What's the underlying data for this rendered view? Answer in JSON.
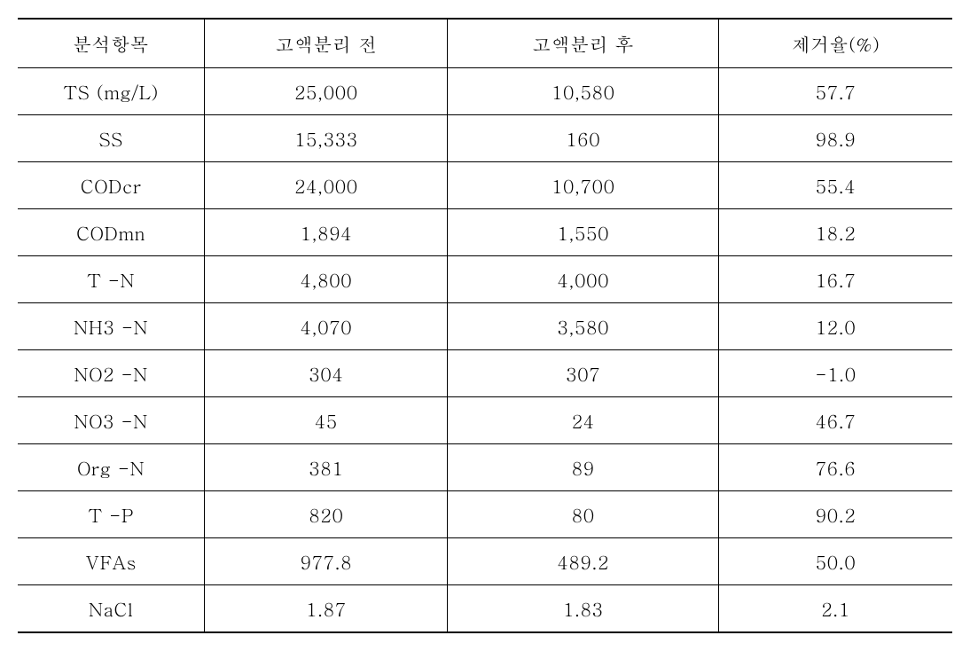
{
  "table": {
    "type": "table",
    "background_color": "#ffffff",
    "border_color": "#000000",
    "text_color": "#000000",
    "font_size": 21,
    "header_border_top_width": 2,
    "header_border_bottom_width": 1,
    "row_border_width": 1,
    "last_row_border_width": 2,
    "column_widths": [
      "20%",
      "26%",
      "29%",
      "25%"
    ],
    "columns": [
      "분석항목",
      "고액분리 전",
      "고액분리 후",
      "제거율(%)"
    ],
    "rows": [
      {
        "c0": "TS (mg/L)",
        "c1": "25,000",
        "c2": "10,580",
        "c3": "57.7"
      },
      {
        "c0": "SS",
        "c1": "15,333",
        "c2": "160",
        "c3": "98.9"
      },
      {
        "c0": "CODcr",
        "c1": "24,000",
        "c2": "10,700",
        "c3": "55.4"
      },
      {
        "c0": "CODmn",
        "c1": "1,894",
        "c2": "1,550",
        "c3": "18.2"
      },
      {
        "c0": "T -N",
        "c1": "4,800",
        "c2": "4,000",
        "c3": "16.7"
      },
      {
        "c0": "NH3 -N",
        "c1": "4,070",
        "c2": "3,580",
        "c3": "12.0"
      },
      {
        "c0": "NO2 -N",
        "c1": "304",
        "c2": "307",
        "c3": "-1.0"
      },
      {
        "c0": "NO3 -N",
        "c1": "45",
        "c2": "24",
        "c3": "46.7"
      },
      {
        "c0": "Org -N",
        "c1": "381",
        "c2": "89",
        "c3": "76.6"
      },
      {
        "c0": "T -P",
        "c1": "820",
        "c2": "80",
        "c3": "90.2"
      },
      {
        "c0": "VFAs",
        "c1": "977.8",
        "c2": "489.2",
        "c3": "50.0"
      },
      {
        "c0": "NaCl",
        "c1": "1.87",
        "c2": "1.83",
        "c3": "2.1"
      }
    ]
  }
}
